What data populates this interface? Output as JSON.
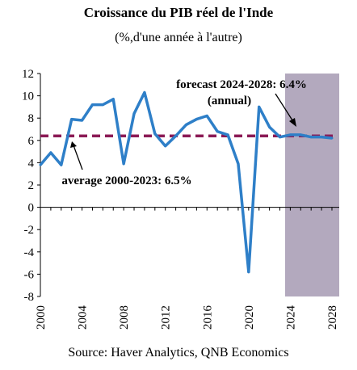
{
  "chart_data": {
    "type": "line",
    "title": "Croissance du PIB réel de l'Inde",
    "subtitle": "(%,d'une année à l'autre)",
    "source": "Source: Haver Analytics, QNB Economics",
    "x": [
      2000,
      2001,
      2002,
      2003,
      2004,
      2005,
      2006,
      2007,
      2008,
      2009,
      2010,
      2011,
      2012,
      2013,
      2014,
      2015,
      2016,
      2017,
      2018,
      2019,
      2020,
      2021,
      2022,
      2023,
      2024,
      2025,
      2026,
      2027,
      2028
    ],
    "series": [
      {
        "values": [
          3.8,
          4.9,
          3.8,
          7.9,
          7.8,
          9.2,
          9.2,
          9.7,
          3.9,
          8.4,
          10.3,
          6.6,
          5.5,
          6.4,
          7.4,
          7.9,
          8.2,
          6.8,
          6.5,
          3.9,
          -5.8,
          9.0,
          7.2,
          6.3,
          6.5,
          6.5,
          6.3,
          6.3,
          6.2
        ]
      }
    ],
    "average_value": 6.4,
    "forecast_range": [
      2023.5,
      2028.7
    ],
    "xlim": [
      2000,
      2028.7
    ],
    "ylim": [
      -8,
      12
    ],
    "yticks": [
      "-8",
      "-6",
      "-4",
      "-2",
      "0",
      "2",
      "4",
      "6",
      "8",
      "10",
      "12"
    ],
    "xticks": [
      "2000",
      "2004",
      "2008",
      "2012",
      "2016",
      "2020",
      "2024",
      "2028"
    ],
    "annotations": {
      "forecast_line1": "forecast 2024-2028: 6.4%",
      "forecast_line2": "(annual)",
      "average": "average 2000-2023: 6.5%"
    },
    "colors": {
      "line": "#2E7FC8",
      "average": "#8B1A55",
      "forecast_shade": "#B3A9BE"
    }
  }
}
